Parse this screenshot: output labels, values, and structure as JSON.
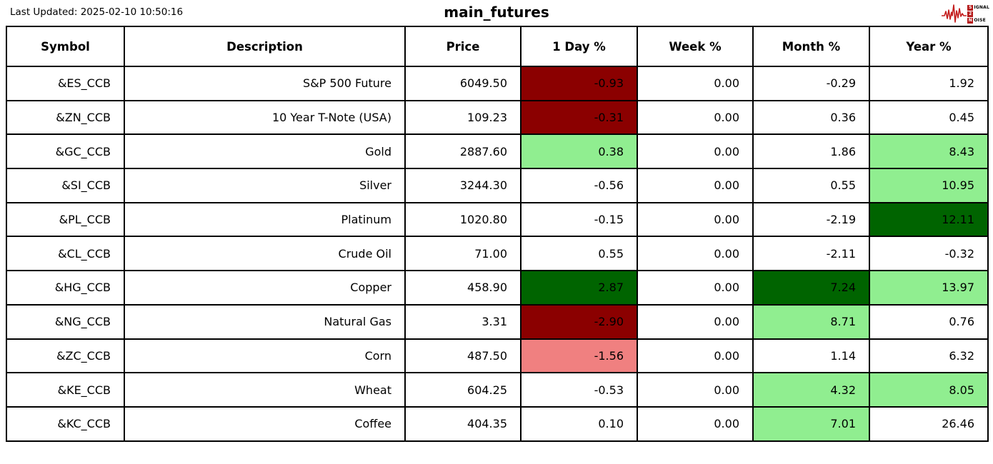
{
  "header": {
    "last_updated": "Last Updated: 2025-02-10 10:50:16",
    "logo": {
      "word1_initial": "S",
      "word1_rest": "IGNAL",
      "word2": "2",
      "word3_initial": "N",
      "word3_rest": "OISE"
    }
  },
  "colors": {
    "darkred": "#8B0000",
    "lightcoral": "#F08080",
    "lightgreen": "#90EE90",
    "darkgreen": "#006400",
    "logo_red": "#C41E1E"
  },
  "chart_data": {
    "type": "table",
    "title": "main_futures",
    "columns": [
      "Symbol",
      "Description",
      "Price",
      "1 Day %",
      "Week %",
      "Month %",
      "Year %"
    ],
    "rows": [
      {
        "symbol": "&ES_CCB",
        "description": "S&P 500 Future",
        "price": 6049.5,
        "day": -0.93,
        "week": 0.0,
        "month": -0.29,
        "year": 1.92,
        "highlights": {
          "day": "darkred"
        }
      },
      {
        "symbol": "&ZN_CCB",
        "description": "10 Year T-Note (USA)",
        "price": 109.23,
        "day": -0.31,
        "week": 0.0,
        "month": 0.36,
        "year": 0.45,
        "highlights": {
          "day": "darkred"
        }
      },
      {
        "symbol": "&GC_CCB",
        "description": "Gold",
        "price": 2887.6,
        "day": 0.38,
        "week": 0.0,
        "month": 1.86,
        "year": 8.43,
        "highlights": {
          "day": "lightgreen",
          "year": "lightgreen"
        }
      },
      {
        "symbol": "&SI_CCB",
        "description": "Silver",
        "price": 3244.3,
        "day": -0.56,
        "week": 0.0,
        "month": 0.55,
        "year": 10.95,
        "highlights": {
          "year": "lightgreen"
        }
      },
      {
        "symbol": "&PL_CCB",
        "description": "Platinum",
        "price": 1020.8,
        "day": -0.15,
        "week": 0.0,
        "month": -2.19,
        "year": 12.11,
        "highlights": {
          "year": "darkgreen"
        }
      },
      {
        "symbol": "&CL_CCB",
        "description": "Crude Oil",
        "price": 71.0,
        "day": 0.55,
        "week": 0.0,
        "month": -2.11,
        "year": -0.32,
        "highlights": {}
      },
      {
        "symbol": "&HG_CCB",
        "description": "Copper",
        "price": 458.9,
        "day": 2.87,
        "week": 0.0,
        "month": 7.24,
        "year": 13.97,
        "highlights": {
          "day": "darkgreen",
          "month": "darkgreen",
          "year": "lightgreen"
        }
      },
      {
        "symbol": "&NG_CCB",
        "description": "Natural Gas",
        "price": 3.31,
        "day": -2.9,
        "week": 0.0,
        "month": 8.71,
        "year": 0.76,
        "highlights": {
          "day": "darkred",
          "month": "lightgreen"
        }
      },
      {
        "symbol": "&ZC_CCB",
        "description": "Corn",
        "price": 487.5,
        "day": -1.56,
        "week": 0.0,
        "month": 1.14,
        "year": 6.32,
        "highlights": {
          "day": "lightcoral"
        }
      },
      {
        "symbol": "&KE_CCB",
        "description": "Wheat",
        "price": 604.25,
        "day": -0.53,
        "week": 0.0,
        "month": 4.32,
        "year": 8.05,
        "highlights": {
          "month": "lightgreen",
          "year": "lightgreen"
        }
      },
      {
        "symbol": "&KC_CCB",
        "description": "Coffee",
        "price": 404.35,
        "day": 0.1,
        "week": 0.0,
        "month": 7.01,
        "year": 26.46,
        "highlights": {
          "month": "lightgreen"
        }
      }
    ]
  }
}
